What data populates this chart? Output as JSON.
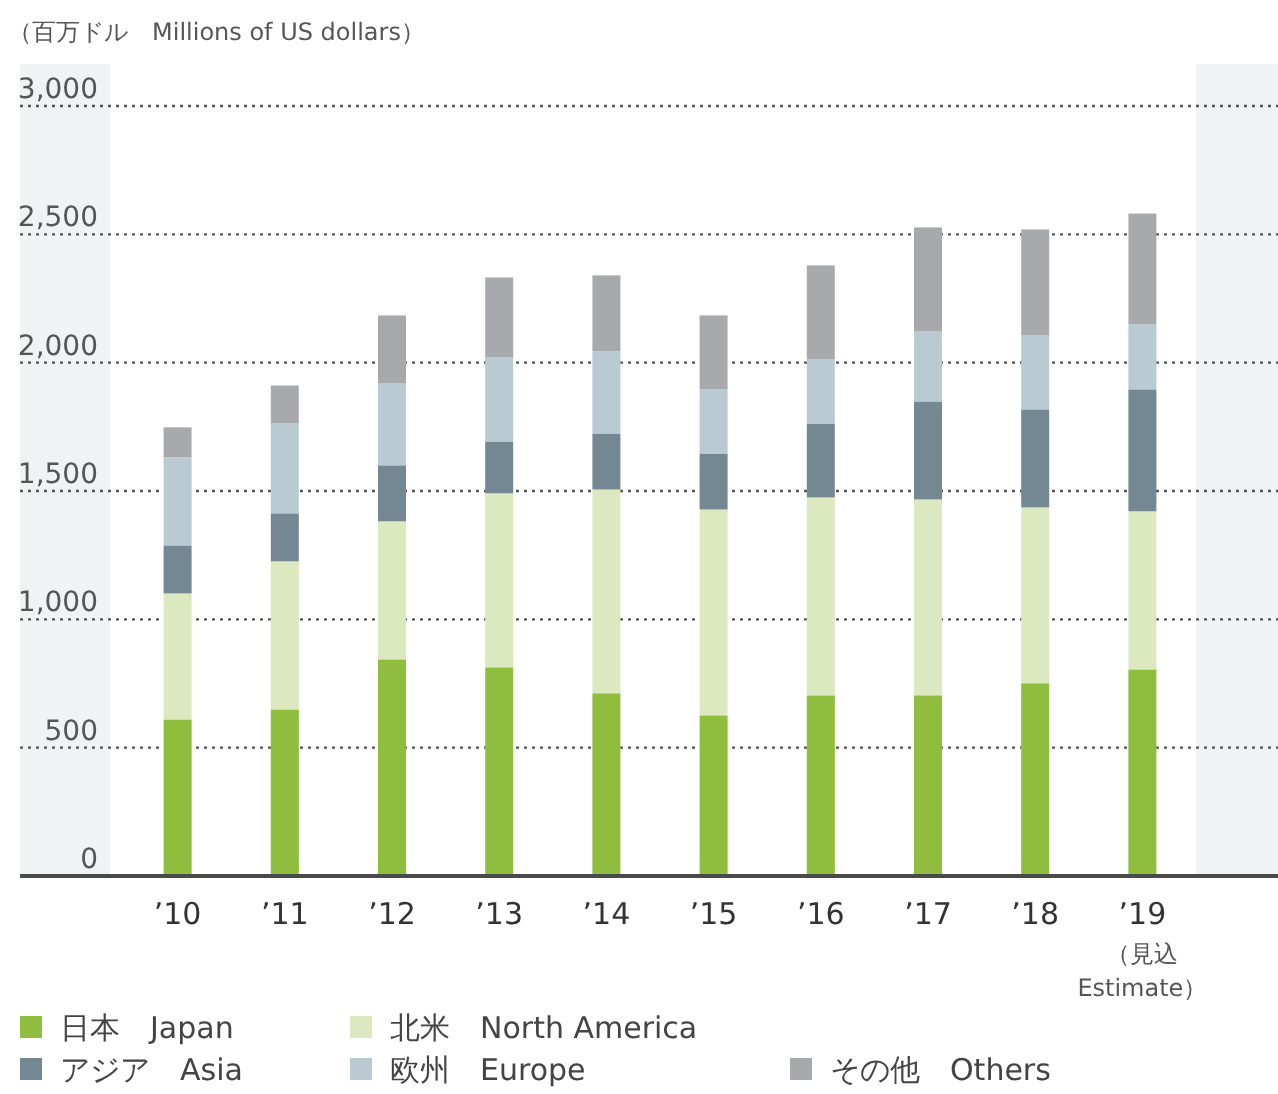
{
  "chart_data": {
    "type": "bar",
    "stacked": true,
    "ylabel": "（百万ドル　Millions of US dollars）",
    "categories": [
      "’10",
      "’11",
      "’12",
      "’13",
      "’14",
      "’15",
      "’16",
      "’17",
      "’18",
      "’19\n（見込\nEstimate）"
    ],
    "series": [
      {
        "name": "日本　Japan",
        "color": "#8fbe3f",
        "values": [
          610,
          649,
          844,
          813,
          712,
          626,
          704,
          704,
          751,
          805
        ]
      },
      {
        "name": "北米　North America",
        "color": "#dce8c0",
        "values": [
          491,
          577,
          538,
          678,
          794,
          802,
          771,
          763,
          685,
          616
        ]
      },
      {
        "name": "アジア　Asia",
        "color": "#738892",
        "values": [
          187,
          187,
          218,
          202,
          218,
          218,
          288,
          382,
          382,
          475
        ]
      },
      {
        "name": "欧州　Europe",
        "color": "#b9cad2",
        "values": [
          343,
          350,
          319,
          327,
          320,
          250,
          250,
          272,
          288,
          254
        ]
      },
      {
        "name": "その他　Others",
        "color": "#a8a9ad",
        "values": [
          117,
          148,
          265,
          312,
          296,
          288,
          366,
          406,
          413,
          431
        ]
      }
    ],
    "ylim": [
      0,
      3000
    ],
    "yticks": [
      {
        "value": 0,
        "label": "0"
      },
      {
        "value": 500,
        "label": "500"
      },
      {
        "value": 1000,
        "label": "1,000"
      },
      {
        "value": 1500,
        "label": "1,500"
      },
      {
        "value": 2000,
        "label": "2,000"
      },
      {
        "value": 2500,
        "label": "2,500"
      },
      {
        "value": 3000,
        "label": "3,000"
      }
    ],
    "grid": "y",
    "legend": "bottom"
  }
}
